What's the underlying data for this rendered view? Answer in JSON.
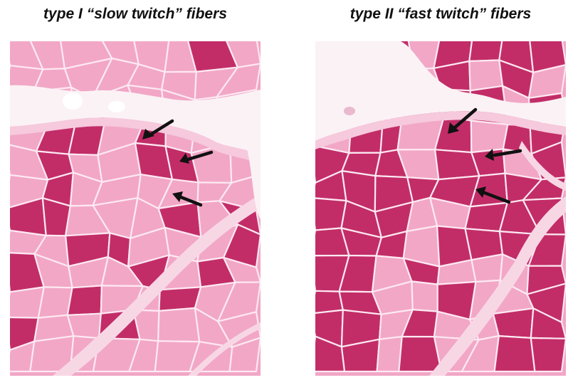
{
  "panels": [
    {
      "caption": "type I “slow twitch” fibers"
    },
    {
      "caption": "type II “fast twitch” fibers"
    }
  ],
  "colors": {
    "light_fiber": "#f2a7c7",
    "dark_fiber": "#c22d68",
    "connective_tissue": "#fbf2f5",
    "cell_border": "#fde9f1",
    "arrow": "#111111"
  }
}
